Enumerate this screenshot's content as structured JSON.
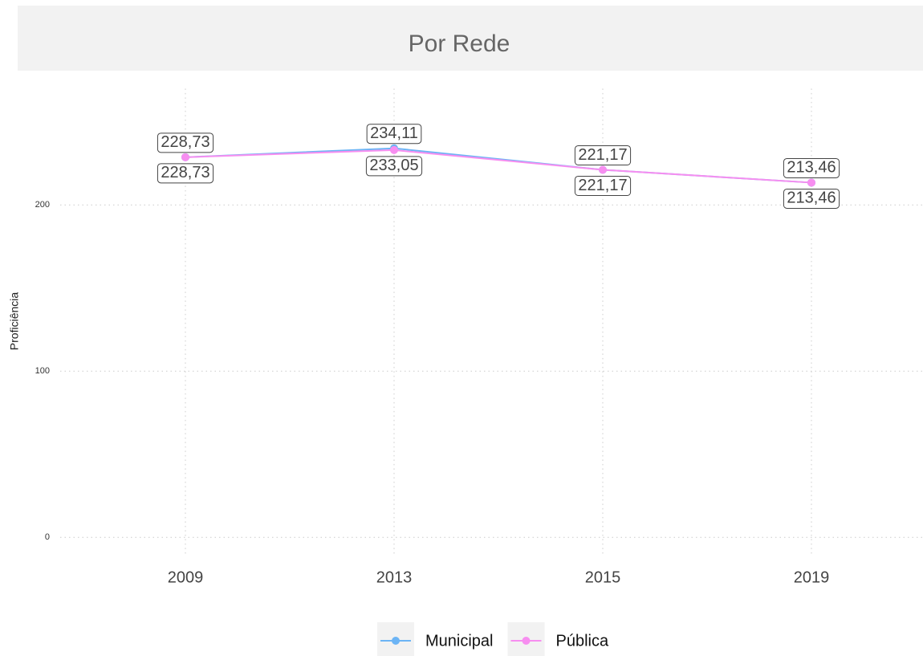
{
  "chart_data": {
    "type": "line",
    "title": "Por Rede",
    "y_label": "Proficiência",
    "categories": [
      "2009",
      "2013",
      "2015",
      "2019"
    ],
    "series": [
      {
        "name": "Municipal",
        "color": "#6cb4f5",
        "values": [
          228.73,
          234.11,
          221.17,
          213.46
        ],
        "value_labels": [
          "228,73",
          "234,11",
          "221,17",
          "213,46"
        ]
      },
      {
        "name": "Pública",
        "color": "#f78ef0",
        "values": [
          228.73,
          233.05,
          221.17,
          213.46
        ],
        "value_labels": [
          "228,73",
          "233,05",
          "221,17",
          "213,46"
        ]
      }
    ],
    "ylim": [
      -10,
      270
    ],
    "yticks": [
      0,
      100,
      200
    ],
    "grid": true,
    "legend": "bottom"
  }
}
